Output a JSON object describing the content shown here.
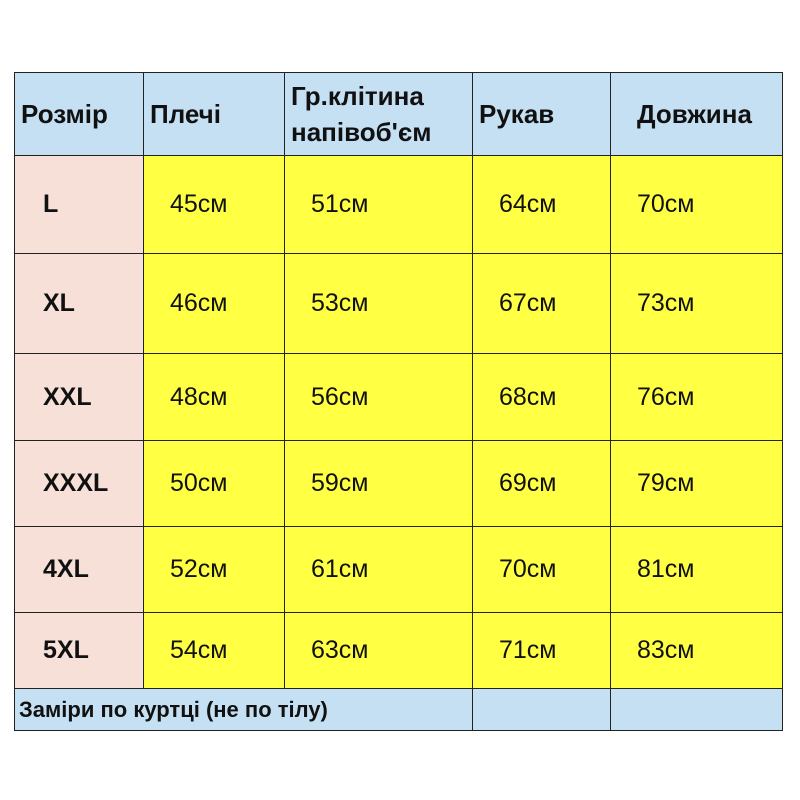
{
  "table": {
    "headers": [
      "Розмір",
      "Плечі",
      "Гр.клітина напівоб'єм",
      "Рукав",
      "Довжина"
    ],
    "header_lines": {
      "chest_line1": "Гр.клітина",
      "chest_line2": "напівоб'єм"
    },
    "rows": [
      {
        "size": "L",
        "values": [
          "45см",
          "51см",
          "64см",
          "70см"
        ]
      },
      {
        "size": "XL",
        "values": [
          "46см",
          "53см",
          "67см",
          "73см"
        ]
      },
      {
        "size": "XXL",
        "values": [
          "48см",
          "56см",
          "68см",
          "76см"
        ]
      },
      {
        "size": "XXXL",
        "values": [
          "50см",
          "59см",
          "69см",
          "79см"
        ]
      },
      {
        "size": "4XL",
        "values": [
          "52см",
          "61см",
          "70см",
          "81см"
        ]
      },
      {
        "size": "5XL",
        "values": [
          "54см",
          "63см",
          "71см",
          "83см"
        ]
      }
    ],
    "footer_note": "Заміри по куртці (не по тілу)"
  },
  "colors": {
    "header": "#c6e0f3",
    "size_column": "#f6e0d8",
    "values": "#ffff44"
  }
}
